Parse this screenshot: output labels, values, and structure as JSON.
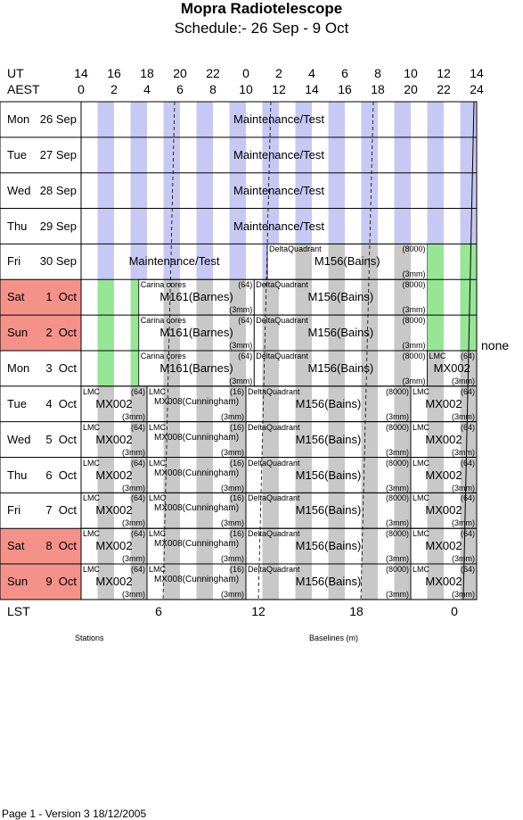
{
  "title": "Mopra Radiotelescope",
  "subtitle": "Schedule:- 26 Sep - 9  Oct",
  "axis": {
    "ut_label": "UT",
    "aest_label": "AEST",
    "ut_ticks": [
      "14",
      "16",
      "18",
      "20",
      "22",
      "0",
      "2",
      "4",
      "6",
      "8",
      "10",
      "12",
      "14"
    ],
    "aest_ticks": [
      "0",
      "2",
      "4",
      "6",
      "8",
      "10",
      "12",
      "14",
      "16",
      "18",
      "20",
      "22",
      "24"
    ],
    "lst_label": "LST",
    "lst_ticks": [
      "6",
      "12",
      "18",
      "0"
    ]
  },
  "days": [
    {
      "name": "Mon",
      "date": "26 Sep",
      "weekend": false
    },
    {
      "name": "Tue",
      "date": "27 Sep",
      "weekend": false
    },
    {
      "name": "Wed",
      "date": "28 Sep",
      "weekend": false
    },
    {
      "name": "Thu",
      "date": "29 Sep",
      "weekend": false
    },
    {
      "name": "Fri",
      "date": "30 Sep",
      "weekend": false
    },
    {
      "name": "Sat",
      "date": "1  Oct",
      "weekend": true
    },
    {
      "name": "Sun",
      "date": "2  Oct",
      "weekend": true
    },
    {
      "name": "Mon",
      "date": "3  Oct",
      "weekend": false
    },
    {
      "name": "Tue",
      "date": "4  Oct",
      "weekend": false
    },
    {
      "name": "Wed",
      "date": "5  Oct",
      "weekend": false
    },
    {
      "name": "Thu",
      "date": "6  Oct",
      "weekend": false
    },
    {
      "name": "Fri",
      "date": "7  Oct",
      "weekend": false
    },
    {
      "name": "Sat",
      "date": "8  Oct",
      "weekend": true
    },
    {
      "name": "Sun",
      "date": "9  Oct",
      "weekend": true
    }
  ],
  "blocks": [
    {
      "row": 0,
      "start": 0,
      "end": 24,
      "label": "Maintenance/Test",
      "fill": "blue"
    },
    {
      "row": 1,
      "start": 0,
      "end": 24,
      "label": "Maintenance/Test",
      "fill": "blue"
    },
    {
      "row": 2,
      "start": 0,
      "end": 24,
      "label": "Maintenance/Test",
      "fill": "blue"
    },
    {
      "row": 3,
      "start": 0,
      "end": 24,
      "label": "Maintenance/Test",
      "fill": "blue"
    },
    {
      "row": 4,
      "start": 0,
      "end": 11.3,
      "label": "Maintenance/Test",
      "fill": "blue"
    },
    {
      "row": 4,
      "start": 11.3,
      "end": 21,
      "label": "M156(Bains)",
      "src": "DeltaQuadrant",
      "cfg": "(8000)",
      "band": "(3mm)",
      "fill": "gray"
    },
    {
      "row": 4,
      "start": 21,
      "end": 22,
      "label": "",
      "fill": "green"
    },
    {
      "row": 4,
      "start": 23,
      "end": 24,
      "label": "",
      "fill": "green"
    },
    {
      "row": 5,
      "start": 1,
      "end": 2,
      "label": "",
      "fill": "green"
    },
    {
      "row": 5,
      "start": 3,
      "end": 3.5,
      "label": "",
      "fill": "green"
    },
    {
      "row": 5,
      "start": 3.5,
      "end": 10.5,
      "label": "M161(Barnes)",
      "src": "Carina cores",
      "cfg": "(64)",
      "band": "(3mm)",
      "fill": "gray"
    },
    {
      "row": 5,
      "start": 10.5,
      "end": 21,
      "label": "M156(Bains)",
      "src": "DeltaQuadrant",
      "cfg": "(8000)",
      "band": "(3mm)",
      "fill": "gray"
    },
    {
      "row": 5,
      "start": 21,
      "end": 22,
      "label": "",
      "fill": "green"
    },
    {
      "row": 5,
      "start": 23,
      "end": 24,
      "label": "",
      "fill": "green"
    },
    {
      "row": 6,
      "start": 1,
      "end": 2,
      "label": "",
      "fill": "green"
    },
    {
      "row": 6,
      "start": 3,
      "end": 3.5,
      "label": "",
      "fill": "green"
    },
    {
      "row": 6,
      "start": 3.5,
      "end": 10.5,
      "label": "M161(Barnes)",
      "src": "Carina cores",
      "cfg": "(64)",
      "band": "(3mm)",
      "fill": "gray"
    },
    {
      "row": 6,
      "start": 10.5,
      "end": 21,
      "label": "M156(Bains)",
      "src": "DeltaQuadrant",
      "cfg": "(8000)",
      "band": "(3mm)",
      "fill": "gray"
    },
    {
      "row": 6,
      "start": 21,
      "end": 22,
      "label": "",
      "fill": "green"
    },
    {
      "row": 6,
      "start": 23,
      "end": 24,
      "label": "",
      "fill": "green"
    },
    {
      "row": 7,
      "start": 1,
      "end": 2,
      "label": "",
      "fill": "green"
    },
    {
      "row": 7,
      "start": 3,
      "end": 3.5,
      "label": "",
      "fill": "green"
    },
    {
      "row": 7,
      "start": 3.5,
      "end": 10.5,
      "label": "M161(Barnes)",
      "src": "Carina cores",
      "cfg": "(64)",
      "band": "(3mm)",
      "fill": "gray"
    },
    {
      "row": 7,
      "start": 10.5,
      "end": 21,
      "label": "M156(Bains)",
      "src": "DeltaQuadrant",
      "cfg": "(8000)",
      "band": "(3mm)",
      "fill": "gray"
    },
    {
      "row": 7,
      "start": 21,
      "end": 24,
      "label": "MX002",
      "src": "LMC",
      "cfg": "(64)",
      "band": "(3mm)",
      "fill": "gray"
    },
    {
      "row": 8,
      "start": 0,
      "end": 4,
      "label": "MX002",
      "src": "LMC",
      "cfg": "(64)",
      "band": "(3mm)",
      "fill": "gray"
    },
    {
      "row": 8,
      "start": 4,
      "end": 10,
      "label": "MX008(Cunningham)",
      "src": "LMC",
      "cfg": "(16)",
      "band": "(3mm)",
      "fill": "gray",
      "small": true
    },
    {
      "row": 8,
      "start": 10,
      "end": 20,
      "label": "M156(Bains)",
      "src": "DeltaQuadrant",
      "cfg": "(8000)",
      "band": "(3mm)",
      "fill": "gray"
    },
    {
      "row": 8,
      "start": 20,
      "end": 24,
      "label": "MX002",
      "src": "LMC",
      "cfg": "(64)",
      "band": "(3mm)",
      "fill": "gray"
    },
    {
      "row": 9,
      "start": 0,
      "end": 4,
      "label": "MX002",
      "src": "LMC",
      "cfg": "(64)",
      "band": "(3mm)",
      "fill": "gray"
    },
    {
      "row": 9,
      "start": 4,
      "end": 10,
      "label": "MX008(Cunningham)",
      "src": "LMC",
      "cfg": "(16)",
      "band": "(3mm)",
      "fill": "gray",
      "small": true
    },
    {
      "row": 9,
      "start": 10,
      "end": 20,
      "label": "M156(Bains)",
      "src": "DeltaQuadrant",
      "cfg": "(8000)",
      "band": "(3mm)",
      "fill": "gray"
    },
    {
      "row": 9,
      "start": 20,
      "end": 24,
      "label": "MX002",
      "src": "LMC",
      "cfg": "(64)",
      "band": "(3mm)",
      "fill": "gray"
    },
    {
      "row": 10,
      "start": 0,
      "end": 4,
      "label": "MX002",
      "src": "LMC",
      "cfg": "(64)",
      "band": "(3mm)",
      "fill": "gray"
    },
    {
      "row": 10,
      "start": 4,
      "end": 10,
      "label": "MX008(Cunningham)",
      "src": "LMC",
      "cfg": "(16)",
      "band": "(3mm)",
      "fill": "gray",
      "small": true
    },
    {
      "row": 10,
      "start": 10,
      "end": 20,
      "label": "M156(Bains)",
      "src": "DeltaQuadrant",
      "cfg": "(8000)",
      "band": "(3mm)",
      "fill": "gray"
    },
    {
      "row": 10,
      "start": 20,
      "end": 24,
      "label": "MX002",
      "src": "LMC",
      "cfg": "(64)",
      "band": "(3mm)",
      "fill": "gray"
    },
    {
      "row": 11,
      "start": 0,
      "end": 4,
      "label": "MX002",
      "src": "LMC",
      "cfg": "(64)",
      "band": "(3mm)",
      "fill": "gray"
    },
    {
      "row": 11,
      "start": 4,
      "end": 10,
      "label": "MX008(Cunningham)",
      "src": "LMC",
      "cfg": "(16)",
      "band": "(3mm)",
      "fill": "gray",
      "small": true
    },
    {
      "row": 11,
      "start": 10,
      "end": 20,
      "label": "M156(Bains)",
      "src": "DeltaQuadrant",
      "cfg": "(8000)",
      "band": "(3mm)",
      "fill": "gray"
    },
    {
      "row": 11,
      "start": 20,
      "end": 24,
      "label": "MX002",
      "src": "LMC",
      "cfg": "(64)",
      "band": "(3mm)",
      "fill": "gray"
    },
    {
      "row": 12,
      "start": 0,
      "end": 4,
      "label": "MX002",
      "src": "LMC",
      "cfg": "(64)",
      "band": "(3mm)",
      "fill": "gray"
    },
    {
      "row": 12,
      "start": 4,
      "end": 10,
      "label": "MX008(Cunningham)",
      "src": "LMC",
      "cfg": "(16)",
      "band": "(3mm)",
      "fill": "gray",
      "small": true
    },
    {
      "row": 12,
      "start": 10,
      "end": 20,
      "label": "M156(Bains)",
      "src": "DeltaQuadrant",
      "cfg": "(8000)",
      "band": "(3mm)",
      "fill": "gray"
    },
    {
      "row": 12,
      "start": 20,
      "end": 24,
      "label": "MX002",
      "src": "LMC",
      "cfg": "(64)",
      "band": "(3mm)",
      "fill": "gray"
    },
    {
      "row": 13,
      "start": 0,
      "end": 4,
      "label": "MX002",
      "src": "LMC",
      "cfg": "(64)",
      "band": "(3mm)",
      "fill": "gray"
    },
    {
      "row": 13,
      "start": 4,
      "end": 10,
      "label": "MX008(Cunningham)",
      "src": "LMC",
      "cfg": "(16)",
      "band": "(3mm)",
      "fill": "gray",
      "small": true
    },
    {
      "row": 13,
      "start": 10,
      "end": 20,
      "label": "M156(Bains)",
      "src": "DeltaQuadrant",
      "cfg": "(8000)",
      "band": "(3mm)",
      "fill": "gray"
    },
    {
      "row": 13,
      "start": 20,
      "end": 24,
      "label": "MX002",
      "src": "LMC",
      "cfg": "(64)",
      "band": "(3mm)",
      "fill": "gray"
    }
  ],
  "side_label": {
    "row": 7,
    "text": "none"
  },
  "colors": {
    "blue": "#c8c8f4",
    "gray": "#c8c8c8",
    "green": "#96e696",
    "weekend": "#f4928a"
  },
  "footer": {
    "stations": "Stations",
    "baselines": "Baselines (m)",
    "page": "Page 1 - Version 3  18/12/2005"
  }
}
